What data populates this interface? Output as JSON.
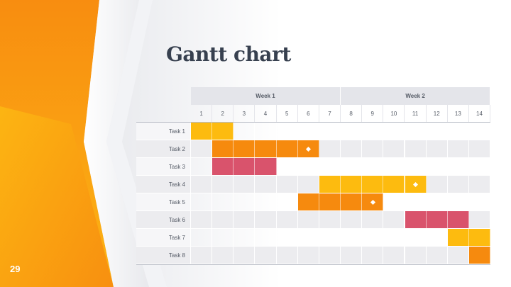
{
  "slide": {
    "title": "Gantt chart",
    "page_number": "29"
  },
  "colors": {
    "yellow": "#fdbb0f",
    "orange": "#f68a0e",
    "pink": "#d9536c",
    "row_alt": "#ececef",
    "header_bg": "#e4e5ea"
  },
  "chart_data": {
    "type": "gantt",
    "weeks": [
      {
        "label": "Week 1",
        "days": [
          1,
          7
        ]
      },
      {
        "label": "Week 2",
        "days": [
          8,
          14
        ]
      }
    ],
    "days": [
      "1",
      "2",
      "3",
      "4",
      "5",
      "6",
      "7",
      "8",
      "9",
      "10",
      "11",
      "12",
      "13",
      "14"
    ],
    "tasks": [
      {
        "name": "Task 1",
        "start": 1,
        "end": 2,
        "color": "yellow",
        "milestone": null
      },
      {
        "name": "Task 2",
        "start": 2,
        "end": 6,
        "color": "orange",
        "milestone": 6
      },
      {
        "name": "Task 3",
        "start": 2,
        "end": 4,
        "color": "pink",
        "milestone": null
      },
      {
        "name": "Task 4",
        "start": 7,
        "end": 11,
        "color": "yellow",
        "milestone": 11
      },
      {
        "name": "Task 5",
        "start": 6,
        "end": 9,
        "color": "orange",
        "milestone": 9
      },
      {
        "name": "Task 6",
        "start": 11,
        "end": 13,
        "color": "pink",
        "milestone": null
      },
      {
        "name": "Task 7",
        "start": 13,
        "end": 14,
        "color": "yellow",
        "milestone": null
      },
      {
        "name": "Task 8",
        "start": 14,
        "end": 14,
        "color": "orange",
        "milestone": null
      }
    ]
  }
}
